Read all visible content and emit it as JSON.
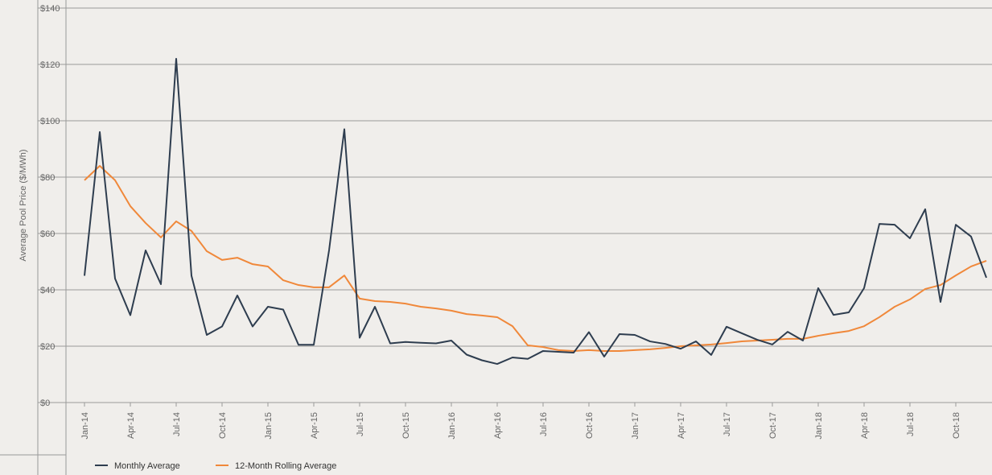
{
  "chart_data": {
    "type": "line",
    "y_label": "Average Pool Price ($/MWh)",
    "categories": [
      "Jan-14",
      null,
      null,
      "Apr-14",
      null,
      null,
      "Jul-14",
      null,
      null,
      "Oct-14",
      null,
      null,
      "Jan-15",
      null,
      null,
      "Apr-15",
      null,
      null,
      "Jul-15",
      null,
      null,
      "Oct-15",
      null,
      null,
      "Jan-16",
      null,
      null,
      "Apr-16",
      null,
      null,
      "Jul-16",
      null,
      null,
      "Oct-16",
      null,
      null,
      "Jan-17",
      null,
      null,
      "Apr-17",
      null,
      null,
      "Jul-17",
      null,
      null,
      "Oct-17",
      null,
      null,
      "Jan-18",
      null,
      null,
      "Apr-18",
      null,
      null,
      "Jul-18",
      null,
      null,
      "Oct-18",
      null,
      null
    ],
    "series": [
      {
        "name": "Monthly Average",
        "color": "#2e3d4f",
        "values": [
          45,
          96,
          44,
          31,
          54,
          42,
          122,
          45,
          24,
          27,
          38,
          27,
          34,
          33,
          20.5,
          20.5,
          54,
          97,
          23,
          34,
          21,
          21.5,
          21.2,
          21,
          22,
          17,
          15,
          13.7,
          16,
          15.5,
          18.3,
          18,
          17.7,
          25,
          16.3,
          24.3,
          24,
          21.7,
          20.8,
          19.1,
          21.7,
          16.9,
          26.9,
          24.6,
          22.3,
          20.6,
          25.1,
          22,
          40.6,
          31.1,
          32,
          40.6,
          63.4,
          63.1,
          58.3,
          68.6,
          35.7,
          63.1,
          58.9,
          44.3
        ]
      },
      {
        "name": "12-Month Rolling Average",
        "color": "#f0883a",
        "values": [
          78.9,
          84,
          78.9,
          69.7,
          63.7,
          58.6,
          64.3,
          60.9,
          53.7,
          50.6,
          51.4,
          49.1,
          48.3,
          43.4,
          41.7,
          40.9,
          40.9,
          45.1,
          36.9,
          36,
          35.7,
          35.1,
          34,
          33.4,
          32.6,
          31.4,
          30.9,
          30.3,
          27.1,
          20.3,
          19.7,
          18.6,
          18.3,
          18.6,
          18.3,
          18.3,
          18.6,
          18.9,
          19.4,
          20,
          20.3,
          20.6,
          21.1,
          21.7,
          22,
          22.3,
          22.6,
          22.6,
          23.7,
          24.6,
          25.4,
          27.1,
          30.3,
          34,
          36.6,
          40.3,
          41.7,
          45.1,
          48.3,
          50.3
        ]
      }
    ],
    "ylim": [
      0,
      140
    ],
    "yticks": [
      {
        "value": 0,
        "label": "$0"
      },
      {
        "value": 20,
        "label": "$20"
      },
      {
        "value": 40,
        "label": "$40"
      },
      {
        "value": 60,
        "label": "$60"
      },
      {
        "value": 80,
        "label": "$80"
      },
      {
        "value": 100,
        "label": "$100"
      },
      {
        "value": 120,
        "label": "$120"
      },
      {
        "value": 140,
        "label": "$140"
      }
    ],
    "grid": true
  }
}
